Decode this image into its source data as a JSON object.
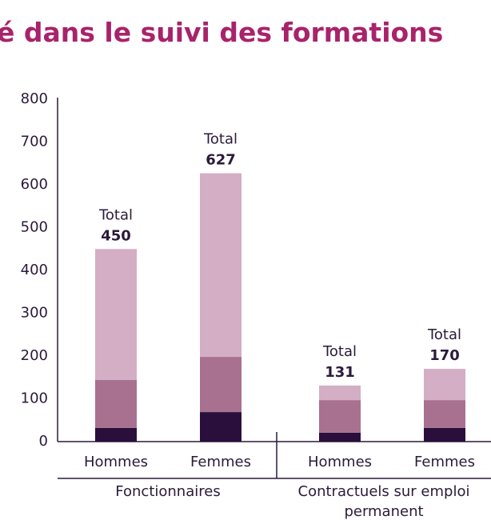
{
  "chart_data": {
    "type": "stacked_bar",
    "title": "é dans le suivi des formations",
    "categories": [
      "Hommes",
      "Femmes",
      "Hommes",
      "Femmes"
    ],
    "groups": [
      [
        "Fonctionnaires"
      ],
      [
        "Contractuels sur emploi",
        "permanent"
      ]
    ],
    "series": [
      {
        "color": "#2a0f3d",
        "values": [
          32,
          69,
          21,
          32
        ]
      },
      {
        "color": "#a8718f",
        "values": [
          112,
          129,
          76,
          65
        ]
      },
      {
        "color": "#d3aec4",
        "values": [
          306,
          429,
          34,
          73
        ]
      }
    ],
    "total_label": "Total",
    "totals": [
      450,
      627,
      131,
      170
    ],
    "ylim": [
      0,
      800
    ],
    "yticks": [
      0,
      100,
      200,
      300,
      400,
      500,
      600,
      700,
      800
    ]
  }
}
